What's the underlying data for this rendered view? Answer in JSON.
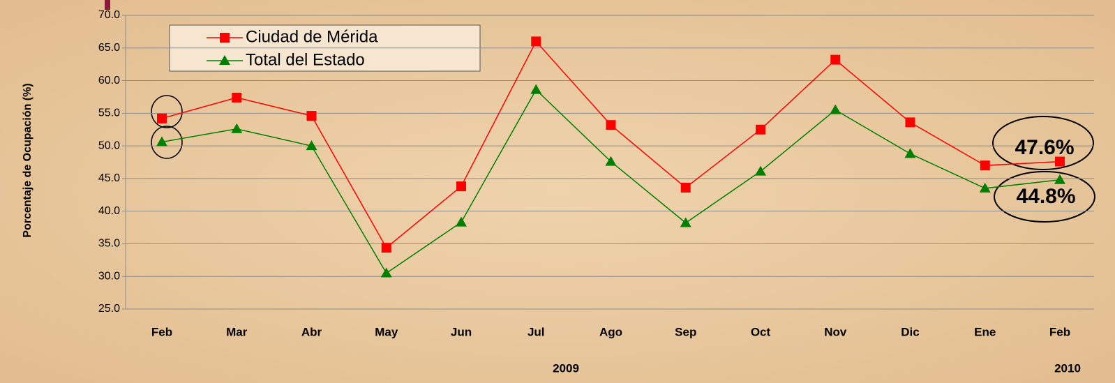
{
  "chart_data": {
    "type": "line",
    "y_label": "Porcentaje de Ocupación (%)",
    "categories": [
      "Feb",
      "Mar",
      "Abr",
      "May",
      "Jun",
      "Jul",
      "Ago",
      "Sep",
      "Oct",
      "Nov",
      "Dic",
      "Ene",
      "Feb"
    ],
    "series": [
      {
        "name": "Ciudad de Mérida",
        "color": "#ff0000",
        "marker": "square",
        "values": [
          54.2,
          57.4,
          54.6,
          34.4,
          43.8,
          66.0,
          53.2,
          43.6,
          52.5,
          63.2,
          53.6,
          47.0,
          47.6
        ]
      },
      {
        "name": "Total del Estado",
        "color": "#008000",
        "marker": "triangle",
        "values": [
          50.6,
          52.6,
          50.0,
          30.5,
          38.3,
          58.6,
          47.6,
          38.2,
          46.1,
          55.5,
          48.8,
          43.5,
          44.8
        ]
      }
    ],
    "ylim": [
      25,
      70
    ],
    "yticks": [
      {
        "value": 25,
        "label": "25.0"
      },
      {
        "value": 30,
        "label": "30.0"
      },
      {
        "value": 35,
        "label": "35.0"
      },
      {
        "value": 40,
        "label": "40.0"
      },
      {
        "value": 45,
        "label": "45.0"
      },
      {
        "value": 50,
        "label": "50.0"
      },
      {
        "value": 55,
        "label": "55.0"
      },
      {
        "value": 60,
        "label": "60.0"
      },
      {
        "value": 65,
        "label": "65.0"
      },
      {
        "value": 70,
        "label": "70.0"
      }
    ],
    "grid": true,
    "annotations": [
      "47.6%",
      "44.8%",
      "2009",
      "2010"
    ]
  }
}
